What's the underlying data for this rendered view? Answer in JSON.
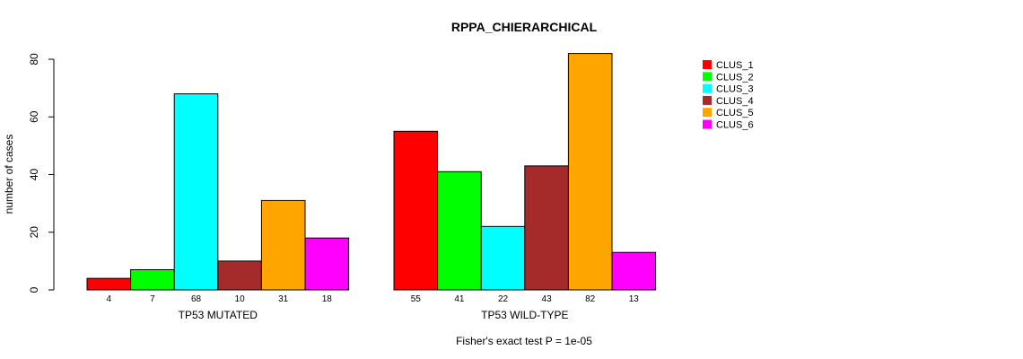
{
  "chart_data": {
    "type": "bar",
    "title": "RPPA_CHIERARCHICAL",
    "ylabel": "number of cases",
    "ylim": [
      0,
      80
    ],
    "yticks": [
      0,
      20,
      40,
      60,
      80
    ],
    "groups": [
      "TP53 MUTATED",
      "TP53 WILD-TYPE"
    ],
    "series": [
      {
        "name": "CLUS_1",
        "color": "#ff0000",
        "values": [
          4,
          55
        ]
      },
      {
        "name": "CLUS_2",
        "color": "#00ff00",
        "values": [
          7,
          41
        ]
      },
      {
        "name": "CLUS_3",
        "color": "#00ffff",
        "values": [
          68,
          22
        ]
      },
      {
        "name": "CLUS_4",
        "color": "#a52a2a",
        "values": [
          10,
          43
        ]
      },
      {
        "name": "CLUS_5",
        "color": "#ffa500",
        "values": [
          31,
          82
        ]
      },
      {
        "name": "CLUS_6",
        "color": "#ff00ff",
        "values": [
          18,
          13
        ]
      }
    ],
    "bar_labels": true,
    "legend_position": "top-right",
    "grid": false,
    "footer": "Fisher's exact test P = 1e-05"
  }
}
